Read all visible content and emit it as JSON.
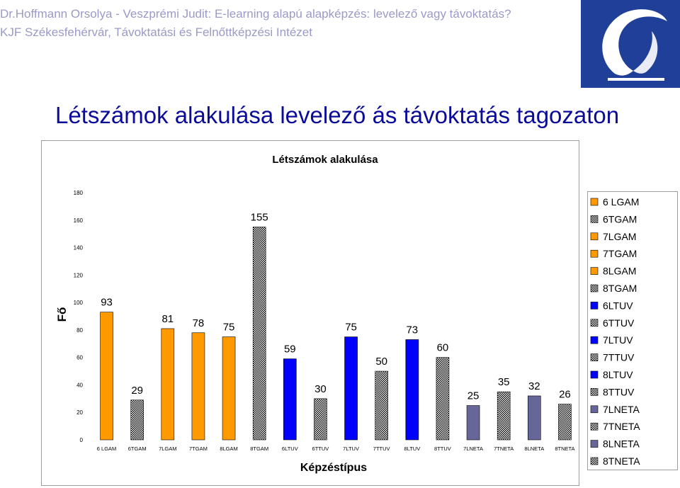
{
  "header": {
    "line1": "Dr.Hoffmann Orsolya - Veszprémi Judit: E-learning alapú alapképzés: levelező vagy távoktatás?",
    "line2": "KJF Székesfehérvár, Távoktatási és Felnőttképzési Intézet"
  },
  "slide_title": "Létszámok alakulása levelező ás távoktatás tagozaton",
  "colors": {
    "header_text": "#9a9ac8",
    "title_text": "#0b0b99",
    "logo_bg": "#1f3f99",
    "orange": "#ff9900",
    "light_orange": "#ffcc66",
    "blue": "#0000ff",
    "light_blue": "#6699ff",
    "slate": "#666699",
    "olive": "#999966"
  },
  "chart_data": {
    "type": "bar",
    "title": "Létszámok alakulása",
    "xlabel": "Képzéstípus",
    "ylabel": "Fő",
    "ylim": [
      0,
      180
    ],
    "yticks": [
      0,
      20,
      40,
      60,
      80,
      100,
      120,
      140,
      160,
      180
    ],
    "grid": false,
    "legend_position": "right",
    "categories": [
      "6 LGAM",
      "6TGAM",
      "7LGAM",
      "7TGAM",
      "8LGAM",
      "8TGAM",
      "6LTUV",
      "6TTUV",
      "7LTUV",
      "7TTUV",
      "8LTUV",
      "8TTUV",
      "7LNETA",
      "7TNETA",
      "8LNETA",
      "8TNETA"
    ],
    "tick_labels": [
      "6 LGAM",
      "6TGAM",
      "7LGAM",
      "7TGAM",
      "8LGAM",
      "8TGAM",
      "6LTUV",
      "6TTUV",
      "7LTUV",
      "7TTUV",
      "8LTUV",
      "8TTUV",
      "7LNETA",
      "7TNETA",
      "8LNETA",
      "8TNETA"
    ],
    "values": [
      93,
      29,
      81,
      78,
      75,
      155,
      59,
      30,
      75,
      50,
      73,
      60,
      25,
      35,
      32,
      26
    ],
    "bar_colors": [
      "#ff9900",
      "#ffcc66",
      "#ff9900",
      "#ff9900",
      "#ff9900",
      "#ff9900",
      "#0000ff",
      "#6699ff",
      "#0000ff",
      "#6699ff",
      "#0000ff",
      "#6699ff",
      "#666699",
      "#999966",
      "#666699",
      "#999966"
    ],
    "bar_patterns": [
      "solid",
      "dots",
      "solid",
      "solid",
      "solid",
      "dots",
      "solid",
      "dots",
      "solid",
      "dots",
      "solid",
      "dots",
      "solid",
      "dots",
      "solid",
      "dots"
    ],
    "legend": [
      "6 LGAM",
      "6TGAM",
      "7LGAM",
      "7TGAM",
      "8LGAM",
      "8TGAM",
      "6LTUV",
      "6TTUV",
      "7LTUV",
      "7TTUV",
      "8LTUV",
      "8TTUV",
      "7LNETA",
      "7TNETA",
      "8LNETA",
      "8TNETA"
    ]
  }
}
